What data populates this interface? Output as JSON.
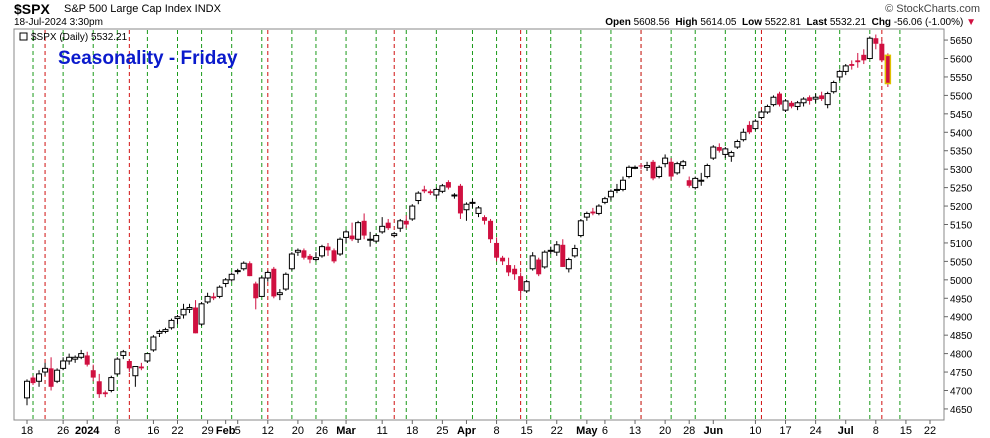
{
  "header": {
    "symbol": "$SPX",
    "description": "S&P 500 Large Cap Index  INDX",
    "datetime": "18-Jul-2024 3:30pm",
    "watermark": "© StockCharts.com",
    "open_label": "Open",
    "open": "5608.56",
    "high_label": "High",
    "high": "5614.05",
    "low_label": "Low",
    "low": "5522.81",
    "last_label": "Last",
    "last": "5532.21",
    "chg_label": "Chg",
    "chg": "-56.06 (-1.00%)"
  },
  "chart_data": {
    "type": "candlestick",
    "title": "Seasonality - Friday",
    "legend": "$SPX (Daily) 5532.21",
    "ylim": [
      4620,
      5680
    ],
    "y_ticks": [
      4650,
      4700,
      4750,
      4800,
      4850,
      4900,
      4950,
      5000,
      5050,
      5100,
      5150,
      5200,
      5250,
      5300,
      5350,
      5400,
      5450,
      5500,
      5550,
      5600,
      5650
    ],
    "x_ticks": [
      "18",
      "26",
      "2024",
      "8",
      "16",
      "22",
      "29",
      "Feb",
      "5",
      "12",
      "20",
      "26",
      "Mar",
      "11",
      "18",
      "25",
      "Apr",
      "8",
      "15",
      "22",
      "May",
      "6",
      "13",
      "20",
      "28",
      "Jun",
      "10",
      "17",
      "24",
      "Jul",
      "8",
      "15",
      "22"
    ],
    "x_tick_days": [
      0,
      6,
      10,
      15,
      21,
      25,
      30,
      33,
      35,
      40,
      45,
      49,
      53,
      59,
      64,
      69,
      73,
      78,
      83,
      88,
      93,
      96,
      101,
      106,
      110,
      114,
      121,
      126,
      131,
      136,
      141,
      146,
      150
    ],
    "vlines": {
      "green": [
        -4,
        1,
        6,
        11,
        15,
        20,
        25,
        29,
        34,
        39,
        44,
        48,
        53,
        58,
        63,
        68,
        74,
        78,
        83,
        87,
        92,
        97,
        102,
        107,
        111,
        116,
        121,
        126,
        131,
        135,
        140,
        145
      ],
      "red": [
        3,
        17,
        40,
        61,
        82,
        102,
        122,
        142
      ]
    },
    "colors": {
      "up": "#000000",
      "down": "#d01040",
      "vgreen": "#1a9a1a",
      "vred": "#d01010",
      "title": "#0a1acc",
      "last_highlight": "#e0c000"
    },
    "ohlc": [
      [
        4680,
        4730,
        4660,
        4725
      ],
      [
        4735,
        4740,
        4715,
        4720
      ],
      [
        4725,
        4755,
        4710,
        4745
      ],
      [
        4750,
        4775,
        4740,
        4760
      ],
      [
        4760,
        4790,
        4700,
        4710
      ],
      [
        4725,
        4760,
        4720,
        4755
      ],
      [
        4760,
        4790,
        4755,
        4780
      ],
      [
        4780,
        4800,
        4770,
        4790
      ],
      [
        4785,
        4795,
        4775,
        4790
      ],
      [
        4790,
        4810,
        4785,
        4800
      ],
      [
        4795,
        4805,
        4765,
        4770
      ],
      [
        4755,
        4770,
        4725,
        4735
      ],
      [
        4725,
        4745,
        4680,
        4690
      ],
      [
        4695,
        4700,
        4682,
        4690
      ],
      [
        4700,
        4740,
        4695,
        4735
      ],
      [
        4745,
        4790,
        4740,
        4785
      ],
      [
        4795,
        4810,
        4785,
        4805
      ],
      [
        4780,
        4785,
        4750,
        4760
      ],
      [
        4740,
        4765,
        4710,
        4765
      ],
      [
        4765,
        4775,
        4755,
        4760
      ],
      [
        4780,
        4800,
        4775,
        4800
      ],
      [
        4810,
        4850,
        4805,
        4845
      ],
      [
        4855,
        4865,
        4845,
        4860
      ],
      [
        4860,
        4870,
        4855,
        4865
      ],
      [
        4870,
        4895,
        4865,
        4890
      ],
      [
        4895,
        4905,
        4880,
        4900
      ],
      [
        4905,
        4935,
        4895,
        4920
      ],
      [
        4920,
        4935,
        4910,
        4925
      ],
      [
        4925,
        4945,
        4855,
        4855
      ],
      [
        4880,
        4940,
        4875,
        4935
      ],
      [
        4940,
        4965,
        4935,
        4955
      ],
      [
        4955,
        4965,
        4945,
        4950
      ],
      [
        4955,
        4985,
        4950,
        4980
      ],
      [
        4990,
        5005,
        4980,
        5000
      ],
      [
        5000,
        5020,
        4995,
        5015
      ],
      [
        5025,
        5030,
        5015,
        5025
      ],
      [
        5030,
        5050,
        5025,
        5045
      ],
      [
        5045,
        5050,
        5010,
        5010
      ],
      [
        4990,
        4995,
        4920,
        4950
      ],
      [
        4955,
        5010,
        4955,
        5005
      ],
      [
        5005,
        5025,
        4995,
        5020
      ],
      [
        5030,
        5035,
        4950,
        4955
      ],
      [
        4960,
        4975,
        4945,
        4965
      ],
      [
        4975,
        5020,
        4970,
        5015
      ],
      [
        5030,
        5075,
        5025,
        5070
      ],
      [
        5075,
        5085,
        5065,
        5080
      ],
      [
        5080,
        5085,
        5055,
        5060
      ],
      [
        5065,
        5070,
        5045,
        5055
      ],
      [
        5055,
        5075,
        5050,
        5060
      ],
      [
        5065,
        5095,
        5060,
        5090
      ],
      [
        5090,
        5100,
        5065,
        5080
      ],
      [
        5080,
        5085,
        5045,
        5050
      ],
      [
        5070,
        5115,
        5065,
        5110
      ],
      [
        5115,
        5135,
        5100,
        5130
      ],
      [
        5120,
        5155,
        5105,
        5110
      ],
      [
        5110,
        5160,
        5100,
        5155
      ],
      [
        5160,
        5180,
        5110,
        5120
      ],
      [
        5110,
        5130,
        5090,
        5110
      ],
      [
        5105,
        5125,
        5100,
        5120
      ],
      [
        5130,
        5170,
        5125,
        5145
      ],
      [
        5155,
        5165,
        5135,
        5140
      ],
      [
        5120,
        5130,
        5115,
        5125
      ],
      [
        5140,
        5165,
        5130,
        5160
      ],
      [
        5160,
        5175,
        5140,
        5150
      ],
      [
        5165,
        5205,
        5160,
        5200
      ],
      [
        5215,
        5240,
        5205,
        5235
      ],
      [
        5245,
        5255,
        5235,
        5240
      ],
      [
        5240,
        5245,
        5230,
        5235
      ],
      [
        5230,
        5250,
        5220,
        5245
      ],
      [
        5240,
        5260,
        5235,
        5255
      ],
      [
        5265,
        5270,
        5245,
        5250
      ],
      [
        5230,
        5235,
        5220,
        5230
      ],
      [
        5255,
        5260,
        5165,
        5180
      ],
      [
        5190,
        5210,
        5160,
        5205
      ],
      [
        5210,
        5220,
        5195,
        5210
      ],
      [
        5180,
        5200,
        5170,
        5195
      ],
      [
        5170,
        5175,
        5150,
        5160
      ],
      [
        5160,
        5165,
        5100,
        5110
      ],
      [
        5100,
        5115,
        5050,
        5060
      ],
      [
        5060,
        5065,
        5040,
        5050
      ],
      [
        5040,
        5060,
        5010,
        5020
      ],
      [
        5030,
        5040,
        5000,
        5015
      ],
      [
        5010,
        5020,
        4955,
        4970
      ],
      [
        4970,
        5000,
        4965,
        4995
      ],
      [
        5030,
        5075,
        5025,
        5065
      ],
      [
        5055,
        5060,
        5010,
        5015
      ],
      [
        5035,
        5080,
        5030,
        5075
      ],
      [
        5080,
        5090,
        5070,
        5080
      ],
      [
        5075,
        5105,
        5065,
        5095
      ],
      [
        5095,
        5110,
        5035,
        5035
      ],
      [
        5030,
        5060,
        5020,
        5055
      ],
      [
        5065,
        5095,
        5060,
        5085
      ],
      [
        5120,
        5165,
        5115,
        5160
      ],
      [
        5170,
        5185,
        5160,
        5180
      ],
      [
        5185,
        5195,
        5175,
        5180
      ],
      [
        5180,
        5205,
        5175,
        5200
      ],
      [
        5210,
        5225,
        5205,
        5220
      ],
      [
        5225,
        5245,
        5215,
        5240
      ],
      [
        5245,
        5260,
        5235,
        5245
      ],
      [
        5245,
        5280,
        5240,
        5270
      ],
      [
        5280,
        5310,
        5275,
        5305
      ],
      [
        5305,
        5310,
        5300,
        5305
      ],
      [
        5310,
        5315,
        5300,
        5308
      ],
      [
        5305,
        5320,
        5295,
        5310
      ],
      [
        5320,
        5325,
        5270,
        5275
      ],
      [
        5280,
        5310,
        5275,
        5305
      ],
      [
        5315,
        5340,
        5305,
        5330
      ],
      [
        5320,
        5330,
        5270,
        5280
      ],
      [
        5290,
        5320,
        5285,
        5315
      ],
      [
        5310,
        5325,
        5300,
        5320
      ],
      [
        5270,
        5280,
        5250,
        5255
      ],
      [
        5250,
        5280,
        5245,
        5275
      ],
      [
        5270,
        5290,
        5255,
        5270
      ],
      [
        5280,
        5315,
        5275,
        5310
      ],
      [
        5330,
        5365,
        5325,
        5360
      ],
      [
        5360,
        5370,
        5345,
        5350
      ],
      [
        5340,
        5360,
        5330,
        5355
      ],
      [
        5335,
        5350,
        5320,
        5345
      ],
      [
        5360,
        5380,
        5355,
        5375
      ],
      [
        5380,
        5410,
        5375,
        5400
      ],
      [
        5420,
        5430,
        5395,
        5400
      ],
      [
        5410,
        5435,
        5405,
        5430
      ],
      [
        5440,
        5460,
        5435,
        5455
      ],
      [
        5455,
        5475,
        5450,
        5470
      ],
      [
        5475,
        5500,
        5470,
        5495
      ],
      [
        5505,
        5510,
        5470,
        5475
      ],
      [
        5460,
        5490,
        5455,
        5485
      ],
      [
        5480,
        5485,
        5465,
        5470
      ],
      [
        5470,
        5485,
        5460,
        5480
      ],
      [
        5480,
        5495,
        5470,
        5490
      ],
      [
        5495,
        5500,
        5475,
        5485
      ],
      [
        5490,
        5505,
        5480,
        5495
      ],
      [
        5500,
        5510,
        5485,
        5490
      ],
      [
        5475,
        5510,
        5465,
        5505
      ],
      [
        5510,
        5540,
        5505,
        5535
      ],
      [
        5550,
        5570,
        5540,
        5565
      ],
      [
        5565,
        5585,
        5555,
        5580
      ],
      [
        5585,
        5595,
        5570,
        5580
      ],
      [
        5595,
        5615,
        5575,
        5590
      ],
      [
        5610,
        5625,
        5585,
        5595
      ],
      [
        5600,
        5660,
        5600,
        5655
      ],
      [
        5655,
        5665,
        5625,
        5640
      ],
      [
        5640,
        5650,
        5590,
        5595
      ],
      [
        5608.56,
        5614.05,
        5522.81,
        5532.21
      ]
    ]
  }
}
